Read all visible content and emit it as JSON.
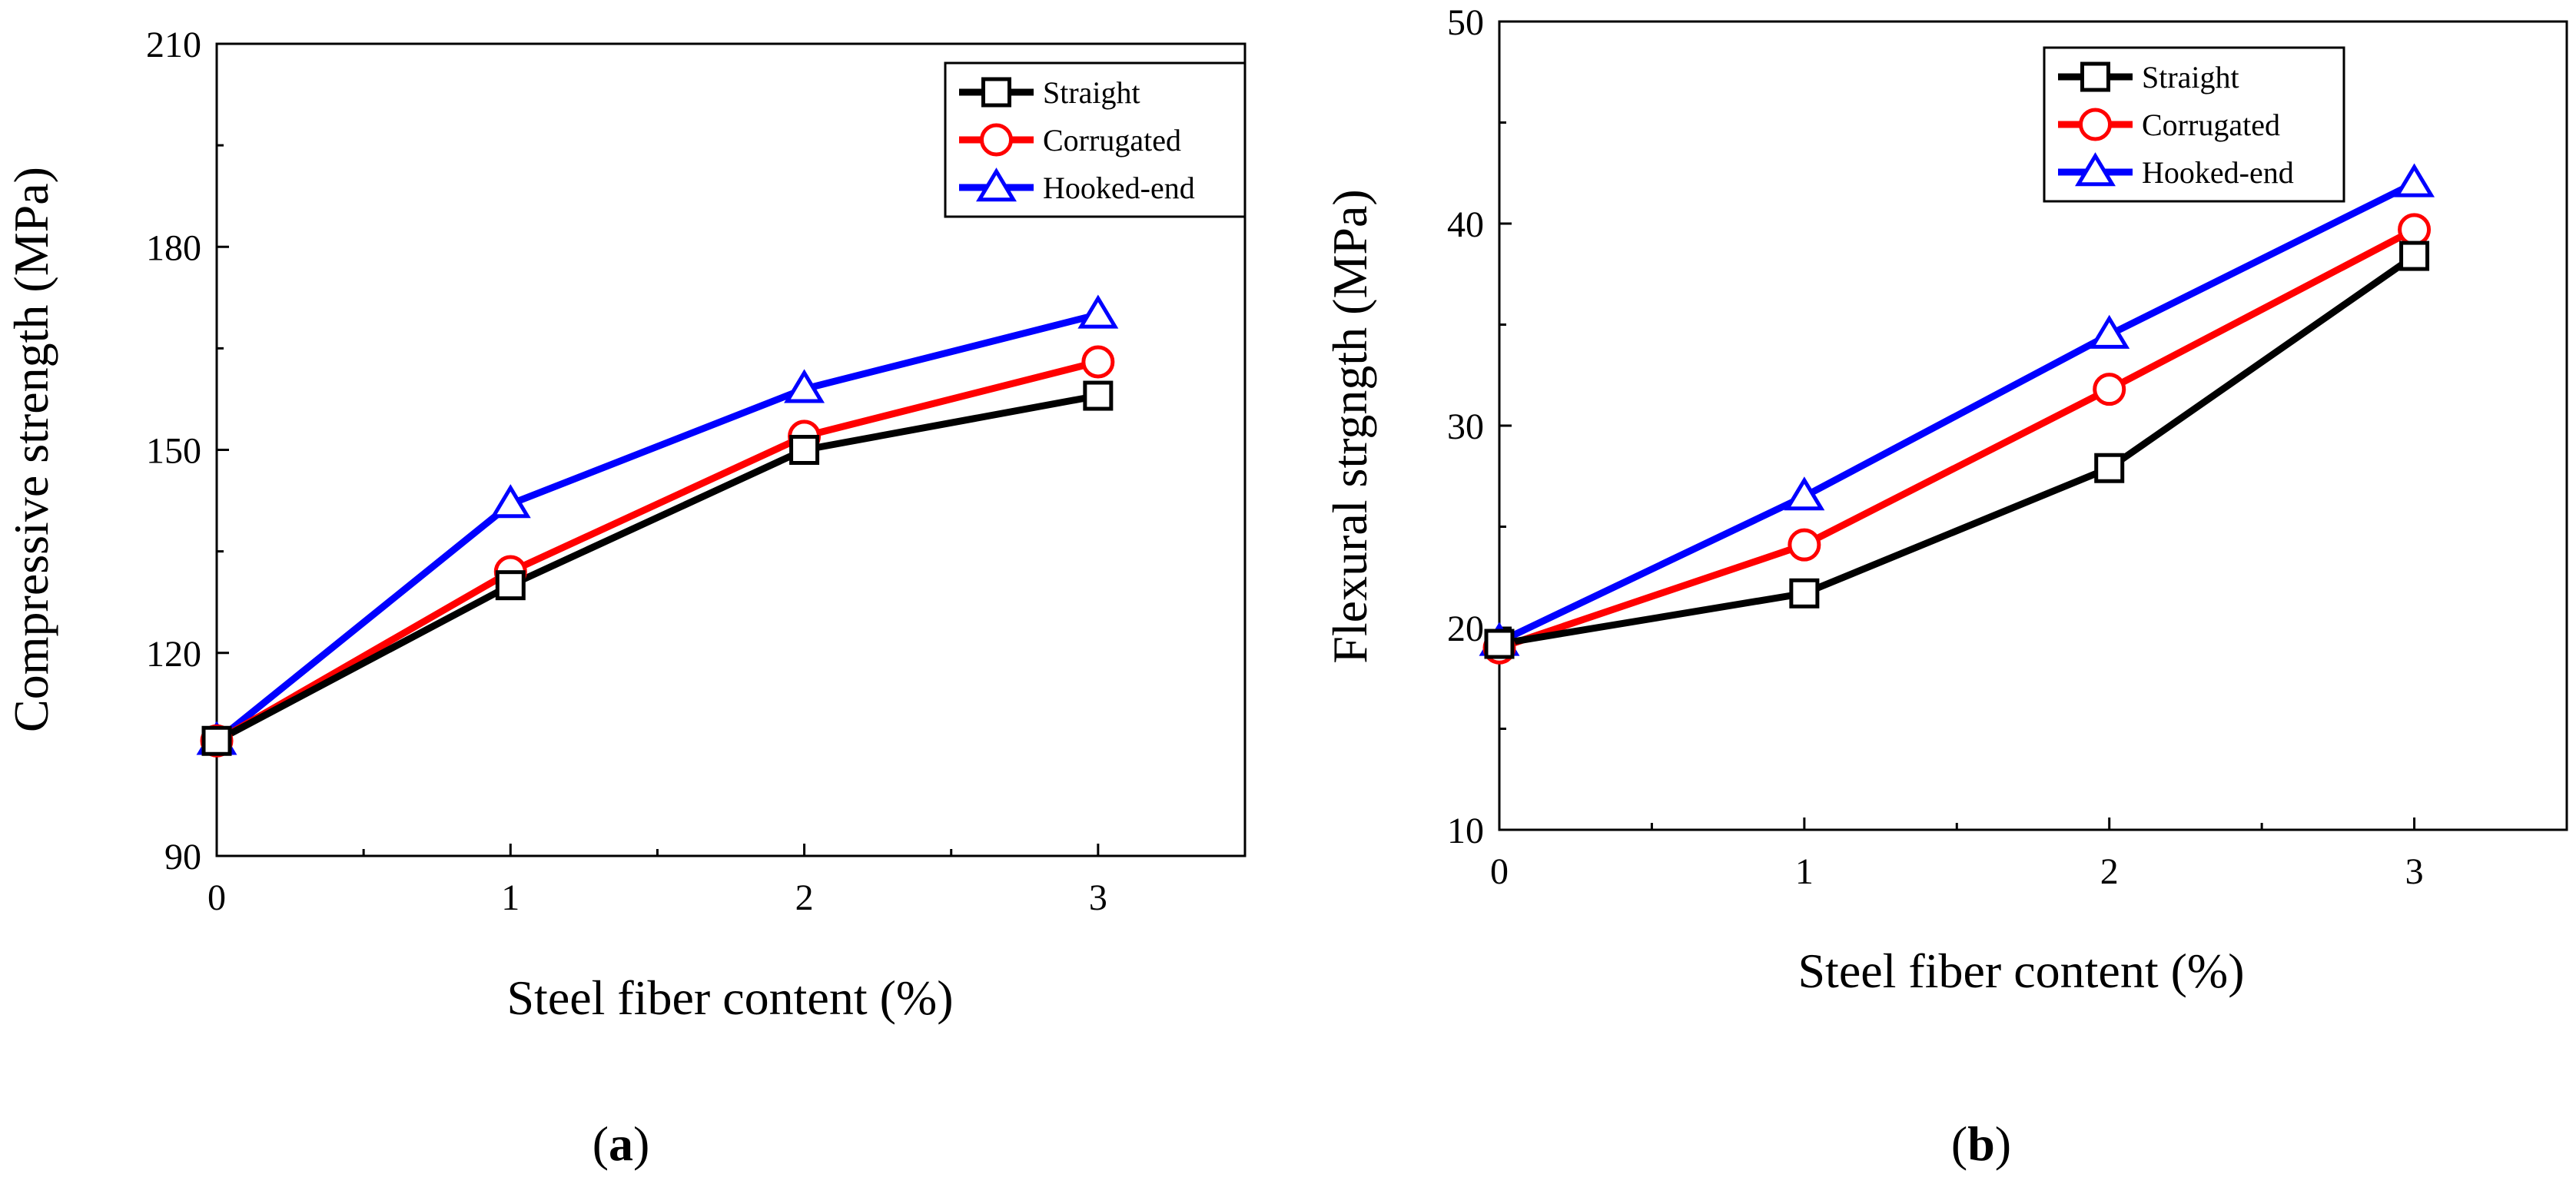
{
  "colors": {
    "Straight": "#000000",
    "Corrugated": "#ff0000",
    "Hooked-end": "#0000ff"
  },
  "markers": {
    "Straight": "square",
    "Corrugated": "circle",
    "Hooked-end": "triangle"
  },
  "panels": [
    {
      "open": "(",
      "letter": "a",
      "close": ")"
    },
    {
      "open": "(",
      "letter": "b",
      "close": ")"
    }
  ],
  "chart_data": [
    {
      "type": "line",
      "title": "",
      "xlabel": "Steel fiber content (%)",
      "ylabel": "Compressive strength (MPa)",
      "x": [
        0,
        1,
        2,
        3
      ],
      "xlim": [
        0,
        3.5
      ],
      "ylim": [
        90,
        210
      ],
      "xticks": [
        0,
        1,
        2,
        3
      ],
      "xtick_labels": [
        "0",
        "1",
        "2",
        "3"
      ],
      "yticks": [
        90,
        120,
        150,
        180,
        210
      ],
      "ytick_labels": [
        "90",
        "120",
        "150",
        "180",
        "210"
      ],
      "grid": false,
      "legend_position": "top-right",
      "series": [
        {
          "name": "Straight",
          "values": [
            107,
            130,
            150,
            158
          ]
        },
        {
          "name": "Corrugated",
          "values": [
            107,
            132,
            152,
            163
          ]
        },
        {
          "name": "Hooked-end",
          "values": [
            107,
            142,
            159,
            170
          ]
        }
      ]
    },
    {
      "type": "line",
      "title": "",
      "xlabel": "Steel fiber content (%)",
      "ylabel": "Flexural strgngth (MPa)",
      "x": [
        0,
        1,
        2,
        3
      ],
      "xlim": [
        0,
        3.5
      ],
      "ylim": [
        10,
        50
      ],
      "xticks": [
        0,
        1,
        2,
        3
      ],
      "xtick_labels": [
        "0",
        "1",
        "2",
        "3"
      ],
      "yticks": [
        10,
        20,
        30,
        40,
        50
      ],
      "ytick_labels": [
        "10",
        "20",
        "30",
        "40",
        "50"
      ],
      "grid": false,
      "legend_position": "top-right",
      "series": [
        {
          "name": "Straight",
          "values": [
            19.2,
            21.7,
            27.9,
            38.4
          ]
        },
        {
          "name": "Corrugated",
          "values": [
            19.0,
            24.1,
            31.8,
            39.7
          ]
        },
        {
          "name": "Hooked-end",
          "values": [
            19.3,
            26.5,
            34.5,
            42.0
          ]
        }
      ]
    }
  ]
}
